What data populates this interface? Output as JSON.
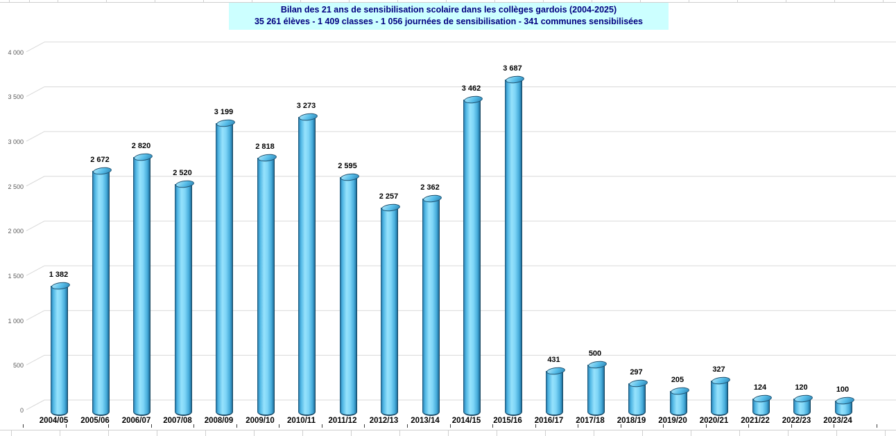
{
  "chart_data": {
    "type": "bar",
    "subtype": "3d-cylinder",
    "title": "Bilan des 21 ans de sensibilisation scolaire dans les collèges gardois (2004-2025)",
    "subtitle": "35 261 élèves - 1 409 classes - 1 056 journées de sensibilisation - 341 communes sensibilisées",
    "categories": [
      "2004/05",
      "2005/06",
      "2006/07",
      "2007/08",
      "2008/09",
      "2009/10",
      "2010/11",
      "2011/12",
      "2012/13",
      "2013/14",
      "2014/15",
      "2015/16",
      "2016/17",
      "2017/18",
      "2018/19",
      "2019/20",
      "2020/21",
      "2021/22",
      "2022/23",
      "2023/24"
    ],
    "values": [
      1382,
      2672,
      2820,
      2520,
      3199,
      2818,
      3273,
      2595,
      2257,
      2362,
      3462,
      3687,
      431,
      500,
      297,
      205,
      327,
      124,
      120,
      100
    ],
    "labels": [
      "1 382",
      "2 672",
      "2 820",
      "2 520",
      "3 199",
      "2 818",
      "3 273",
      "2 595",
      "2 257",
      "2 362",
      "3 462",
      "3 687",
      "431",
      "500",
      "297",
      "205",
      "327",
      "124",
      "120",
      "100"
    ],
    "xlabel": "",
    "ylabel": "",
    "ylim": [
      0,
      4000
    ],
    "ytick_interval": 500,
    "ytick_labels": [
      "0",
      "500",
      "1 000",
      "1 500",
      "2 000",
      "2 500",
      "3 000",
      "3 500",
      "4 000"
    ],
    "grid": true,
    "legend": false,
    "colors": {
      "bar_main": "#45b6e8",
      "bar_highlight": "#96e2fc",
      "bar_edge": "#1c506f",
      "grid_line": "#d9d9d9",
      "axis_text": "#595959",
      "value_text": "#000000",
      "title_bg": "#ccffff",
      "title_text": "#000080"
    }
  }
}
